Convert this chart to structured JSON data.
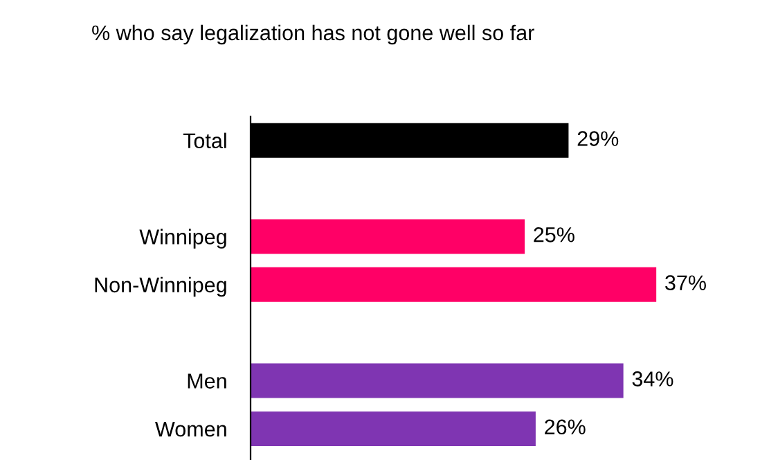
{
  "chart_data": {
    "type": "bar",
    "orientation": "horizontal",
    "title": "% who say legalization has not gone well so far",
    "categories": [
      "Total",
      null,
      "Winnipeg",
      "Non-Winnipeg",
      null,
      "Men",
      "Women"
    ],
    "values": [
      29,
      null,
      25,
      37,
      null,
      34,
      26
    ],
    "colors": [
      "#000000",
      "#ffffff",
      "#ff0066",
      "#ff0066",
      "#ffffff",
      "#7f35b2",
      "#7f35b2"
    ],
    "value_labels": [
      "29%",
      null,
      "25%",
      "37%",
      null,
      "34%",
      "26%"
    ],
    "grid": false,
    "legend": false
  }
}
